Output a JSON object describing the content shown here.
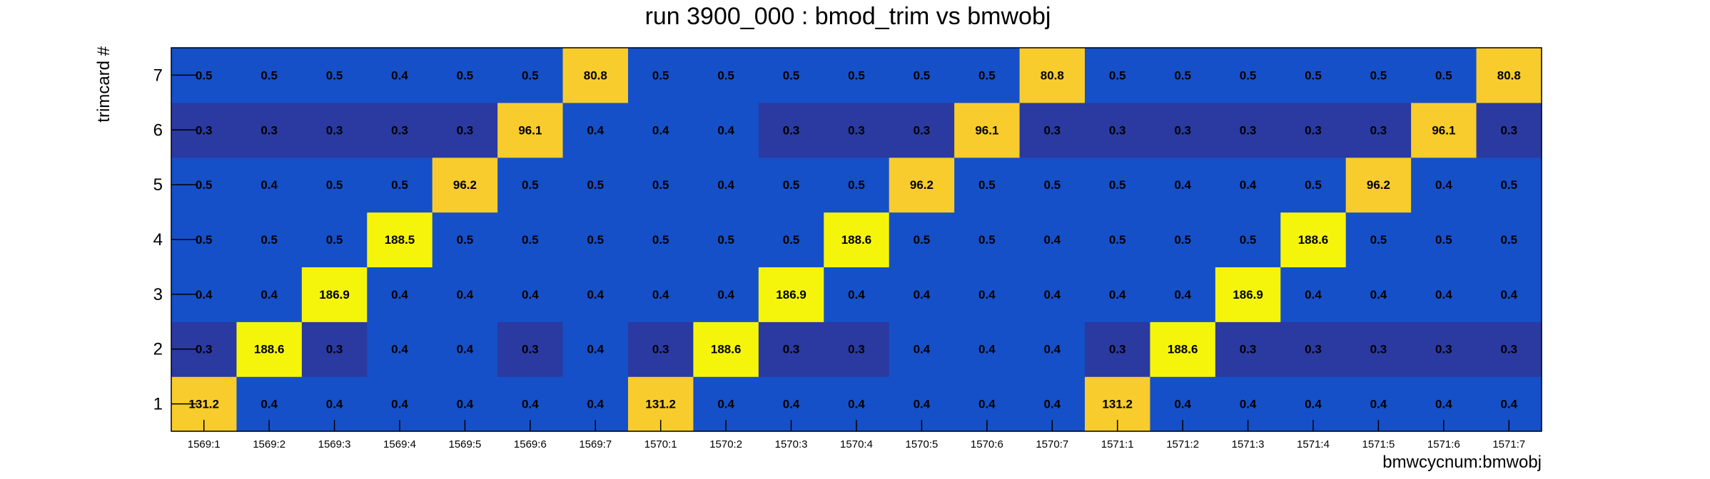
{
  "chart_data": {
    "type": "heatmap",
    "title": "run 3900_000 : bmod_trim vs bmwobj",
    "xlabel": "bmwcycnum:bmwobj",
    "ylabel": "trimcard #",
    "x_categories": [
      "1569:1",
      "1569:2",
      "1569:3",
      "1569:4",
      "1569:5",
      "1569:6",
      "1569:7",
      "1570:1",
      "1570:2",
      "1570:3",
      "1570:4",
      "1570:5",
      "1570:6",
      "1570:7",
      "1571:1",
      "1571:2",
      "1571:3",
      "1571:4",
      "1571:5",
      "1571:6",
      "1571:7"
    ],
    "y_categories": [
      "1",
      "2",
      "3",
      "4",
      "5",
      "6",
      "7"
    ],
    "values": [
      [
        "131.2",
        "0.4",
        "0.4",
        "0.4",
        "0.4",
        "0.4",
        "0.4",
        "131.2",
        "0.4",
        "0.4",
        "0.4",
        "0.4",
        "0.4",
        "0.4",
        "131.2",
        "0.4",
        "0.4",
        "0.4",
        "0.4",
        "0.4",
        "0.4"
      ],
      [
        "0.3",
        "188.6",
        "0.3",
        "0.4",
        "0.4",
        "0.3",
        "0.4",
        "0.3",
        "188.6",
        "0.3",
        "0.3",
        "0.4",
        "0.4",
        "0.4",
        "0.3",
        "188.6",
        "0.3",
        "0.3",
        "0.3",
        "0.3",
        "0.3"
      ],
      [
        "0.4",
        "0.4",
        "186.9",
        "0.4",
        "0.4",
        "0.4",
        "0.4",
        "0.4",
        "0.4",
        "186.9",
        "0.4",
        "0.4",
        "0.4",
        "0.4",
        "0.4",
        "0.4",
        "186.9",
        "0.4",
        "0.4",
        "0.4",
        "0.4"
      ],
      [
        "0.5",
        "0.5",
        "0.5",
        "188.5",
        "0.5",
        "0.5",
        "0.5",
        "0.5",
        "0.5",
        "0.5",
        "188.6",
        "0.5",
        "0.5",
        "0.4",
        "0.5",
        "0.5",
        "0.5",
        "188.6",
        "0.5",
        "0.5",
        "0.5"
      ],
      [
        "0.5",
        "0.4",
        "0.5",
        "0.5",
        "96.2",
        "0.5",
        "0.5",
        "0.5",
        "0.4",
        "0.5",
        "0.5",
        "96.2",
        "0.5",
        "0.5",
        "0.5",
        "0.4",
        "0.4",
        "0.5",
        "96.2",
        "0.4",
        "0.5"
      ],
      [
        "0.3",
        "0.3",
        "0.3",
        "0.3",
        "0.3",
        "96.1",
        "0.4",
        "0.4",
        "0.4",
        "0.3",
        "0.3",
        "0.3",
        "96.1",
        "0.3",
        "0.3",
        "0.3",
        "0.3",
        "0.3",
        "0.3",
        "96.1",
        "0.3"
      ],
      [
        "0.5",
        "0.5",
        "0.5",
        "0.4",
        "0.5",
        "0.5",
        "80.8",
        "0.5",
        "0.5",
        "0.5",
        "0.5",
        "0.5",
        "0.5",
        "80.8",
        "0.5",
        "0.5",
        "0.5",
        "0.5",
        "0.5",
        "0.5",
        "80.8"
      ]
    ],
    "colors": {
      "dark_blue": "#2a3aa0",
      "blue": "#1650c8",
      "yellow": "#f5f50c",
      "gold": "#f8cc2c"
    },
    "grid": false,
    "legend": "none"
  }
}
